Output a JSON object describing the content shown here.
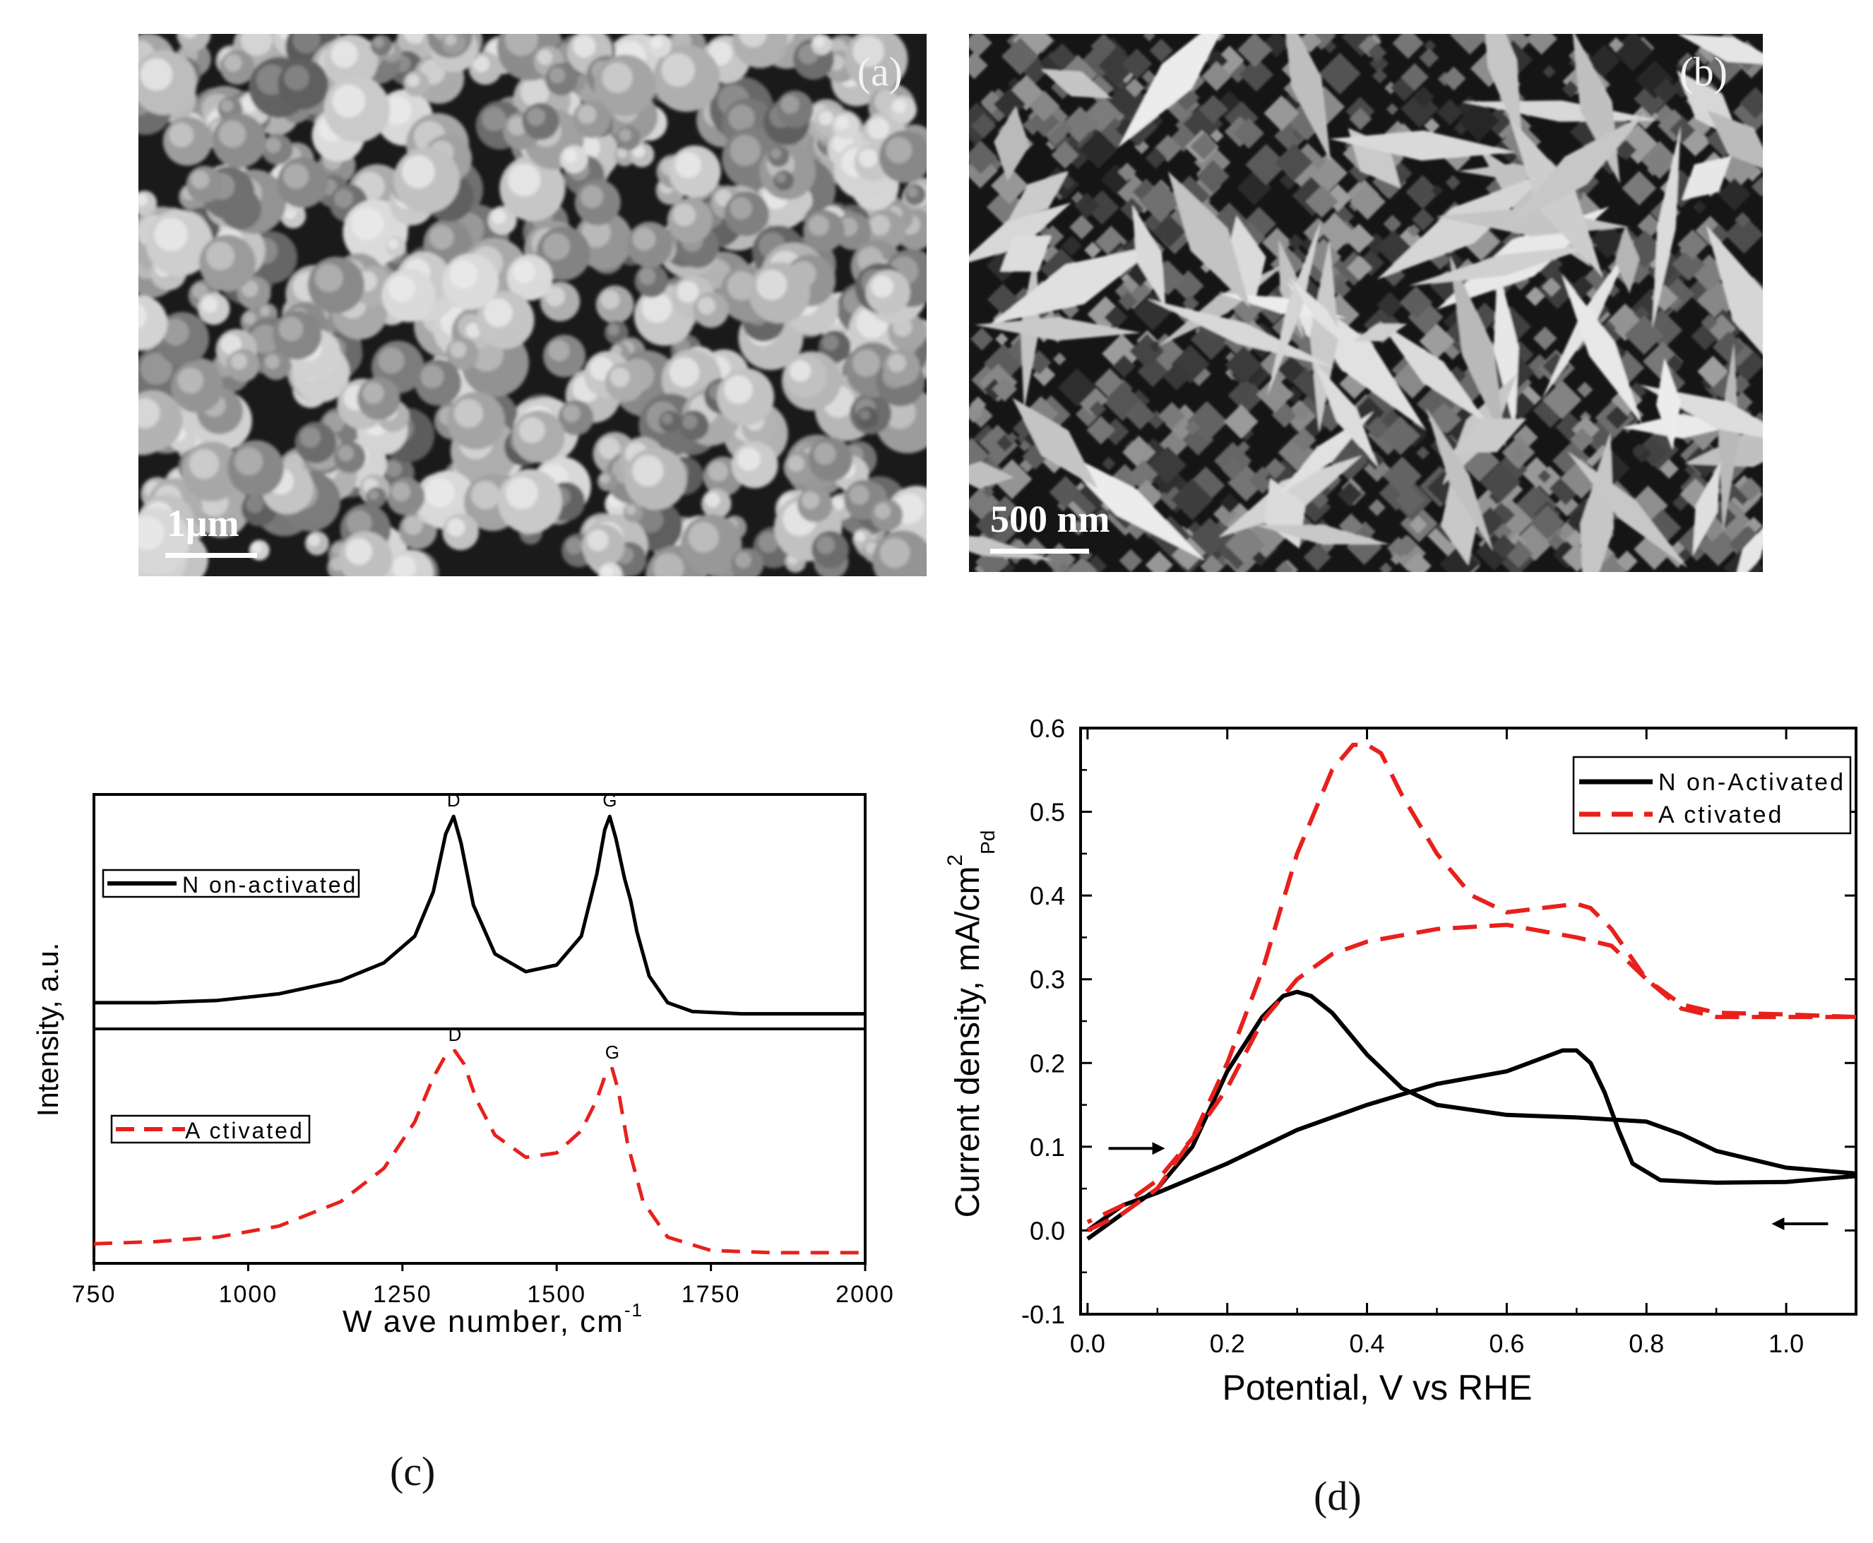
{
  "panels": {
    "a": {
      "label": "(a)",
      "scale_label": "1μm"
    },
    "b": {
      "label": "(b)",
      "scale_label": "500 nm"
    },
    "c": {
      "caption": "(c)"
    },
    "d": {
      "caption": "(d)"
    }
  },
  "chart_data": [
    {
      "type": "line",
      "panel": "c",
      "xlabel": "W ave number, cm",
      "xlabel_sup": "-1",
      "ylabel": "Intensity, a.u.",
      "xlim": [
        750,
        2000
      ],
      "xticks": [
        750,
        1000,
        1250,
        1500,
        1750,
        2000
      ],
      "stacked": true,
      "series": [
        {
          "name": "N on-activated",
          "color": "#000000",
          "dash": "solid",
          "peak_labels": [
            "D",
            "G"
          ],
          "x": [
            750,
            850,
            950,
            1050,
            1150,
            1220,
            1270,
            1300,
            1320,
            1333,
            1345,
            1365,
            1400,
            1450,
            1500,
            1540,
            1565,
            1578,
            1586,
            1596,
            1610,
            1620,
            1630,
            1650,
            1680,
            1720,
            1800,
            1900,
            2000
          ],
          "y": [
            0.08,
            0.08,
            0.09,
            0.12,
            0.18,
            0.26,
            0.38,
            0.58,
            0.84,
            0.92,
            0.8,
            0.52,
            0.3,
            0.22,
            0.25,
            0.38,
            0.66,
            0.86,
            0.92,
            0.82,
            0.64,
            0.54,
            0.4,
            0.2,
            0.08,
            0.04,
            0.03,
            0.03,
            0.03
          ]
        },
        {
          "name": "A ctivated",
          "color": "#e8201c",
          "dash": "dashed",
          "peak_labels": [
            "D",
            "G"
          ],
          "x": [
            750,
            850,
            950,
            1050,
            1150,
            1220,
            1270,
            1300,
            1320,
            1335,
            1350,
            1370,
            1400,
            1450,
            1500,
            1540,
            1565,
            1580,
            1590,
            1600,
            1615,
            1640,
            1680,
            1750,
            1850,
            2000
          ],
          "y": [
            0.05,
            0.06,
            0.08,
            0.13,
            0.24,
            0.39,
            0.6,
            0.8,
            0.9,
            0.92,
            0.86,
            0.7,
            0.54,
            0.44,
            0.46,
            0.56,
            0.7,
            0.82,
            0.84,
            0.74,
            0.5,
            0.24,
            0.08,
            0.02,
            0.01,
            0.01
          ]
        }
      ]
    },
    {
      "type": "line",
      "panel": "d",
      "xlabel": "Potential, V vs RHE",
      "ylabel": "Current density, mA/cm",
      "ylabel_sup": "2",
      "ylabel_sub": "Pd",
      "xlim": [
        -0.01,
        1.1
      ],
      "ylim": [
        -0.1,
        0.6
      ],
      "xticks": [
        0.0,
        0.2,
        0.4,
        0.6,
        0.8,
        1.0
      ],
      "xtick_labels": [
        "0.0",
        "0.2",
        "0.4",
        "0.6",
        "0.8",
        "1.0"
      ],
      "yticks": [
        -0.1,
        0.0,
        0.1,
        0.2,
        0.3,
        0.4,
        0.5,
        0.6
      ],
      "ytick_labels": [
        "-0.1",
        "0.0",
        "0.1",
        "0.2",
        "0.3",
        "0.4",
        "0.5",
        "0.6"
      ],
      "legend_position": "top-right",
      "series": [
        {
          "name": "N on-Activated",
          "color": "#000000",
          "dash": "solid",
          "segments": [
            {
              "x": [
                0.0,
                0.05,
                0.1,
                0.15,
                0.2,
                0.25,
                0.28,
                0.3,
                0.32,
                0.35,
                0.4,
                0.45,
                0.5,
                0.6,
                0.7,
                0.8,
                0.85,
                0.9,
                1.0,
                1.1
              ],
              "y": [
                -0.01,
                0.02,
                0.05,
                0.1,
                0.19,
                0.255,
                0.28,
                0.285,
                0.28,
                0.26,
                0.21,
                0.17,
                0.15,
                0.138,
                0.135,
                0.13,
                0.115,
                0.095,
                0.075,
                0.068
              ]
            },
            {
              "x": [
                1.1,
                1.0,
                0.9,
                0.82,
                0.78,
                0.76,
                0.74,
                0.72,
                0.7,
                0.68,
                0.6,
                0.5,
                0.4,
                0.3,
                0.2,
                0.1,
                0.05,
                0.0
              ],
              "y": [
                0.065,
                0.058,
                0.057,
                0.06,
                0.08,
                0.12,
                0.165,
                0.2,
                0.215,
                0.215,
                0.19,
                0.175,
                0.15,
                0.12,
                0.08,
                0.045,
                0.03,
                0.0
              ]
            }
          ]
        },
        {
          "name": "A ctivated",
          "color": "#e8201c",
          "dash": "dashed",
          "segments": [
            {
              "x": [
                0.0,
                0.05,
                0.1,
                0.15,
                0.2,
                0.25,
                0.3,
                0.35,
                0.38,
                0.4,
                0.42,
                0.45,
                0.5,
                0.55,
                0.6,
                0.65,
                0.7,
                0.72,
                0.75,
                0.8,
                0.85,
                0.9,
                1.0,
                1.1
              ],
              "y": [
                0.0,
                0.02,
                0.05,
                0.11,
                0.2,
                0.31,
                0.45,
                0.55,
                0.58,
                0.58,
                0.57,
                0.52,
                0.45,
                0.4,
                0.38,
                0.385,
                0.39,
                0.385,
                0.36,
                0.3,
                0.265,
                0.255,
                0.255,
                0.255
              ]
            },
            {
              "x": [
                1.1,
                1.0,
                0.9,
                0.85,
                0.8,
                0.75,
                0.7,
                0.6,
                0.5,
                0.4,
                0.35,
                0.3,
                0.25,
                0.2,
                0.15,
                0.1,
                0.05,
                0.0
              ],
              "y": [
                0.255,
                0.258,
                0.26,
                0.27,
                0.3,
                0.34,
                0.35,
                0.365,
                0.36,
                0.345,
                0.33,
                0.3,
                0.25,
                0.17,
                0.11,
                0.06,
                0.03,
                0.01
              ]
            }
          ]
        }
      ],
      "annotations": [
        {
          "type": "arrow",
          "direction": "right",
          "x": 0.03,
          "y": 0.098
        },
        {
          "type": "arrow",
          "direction": "left",
          "x": 1.06,
          "y": 0.008
        }
      ]
    }
  ]
}
